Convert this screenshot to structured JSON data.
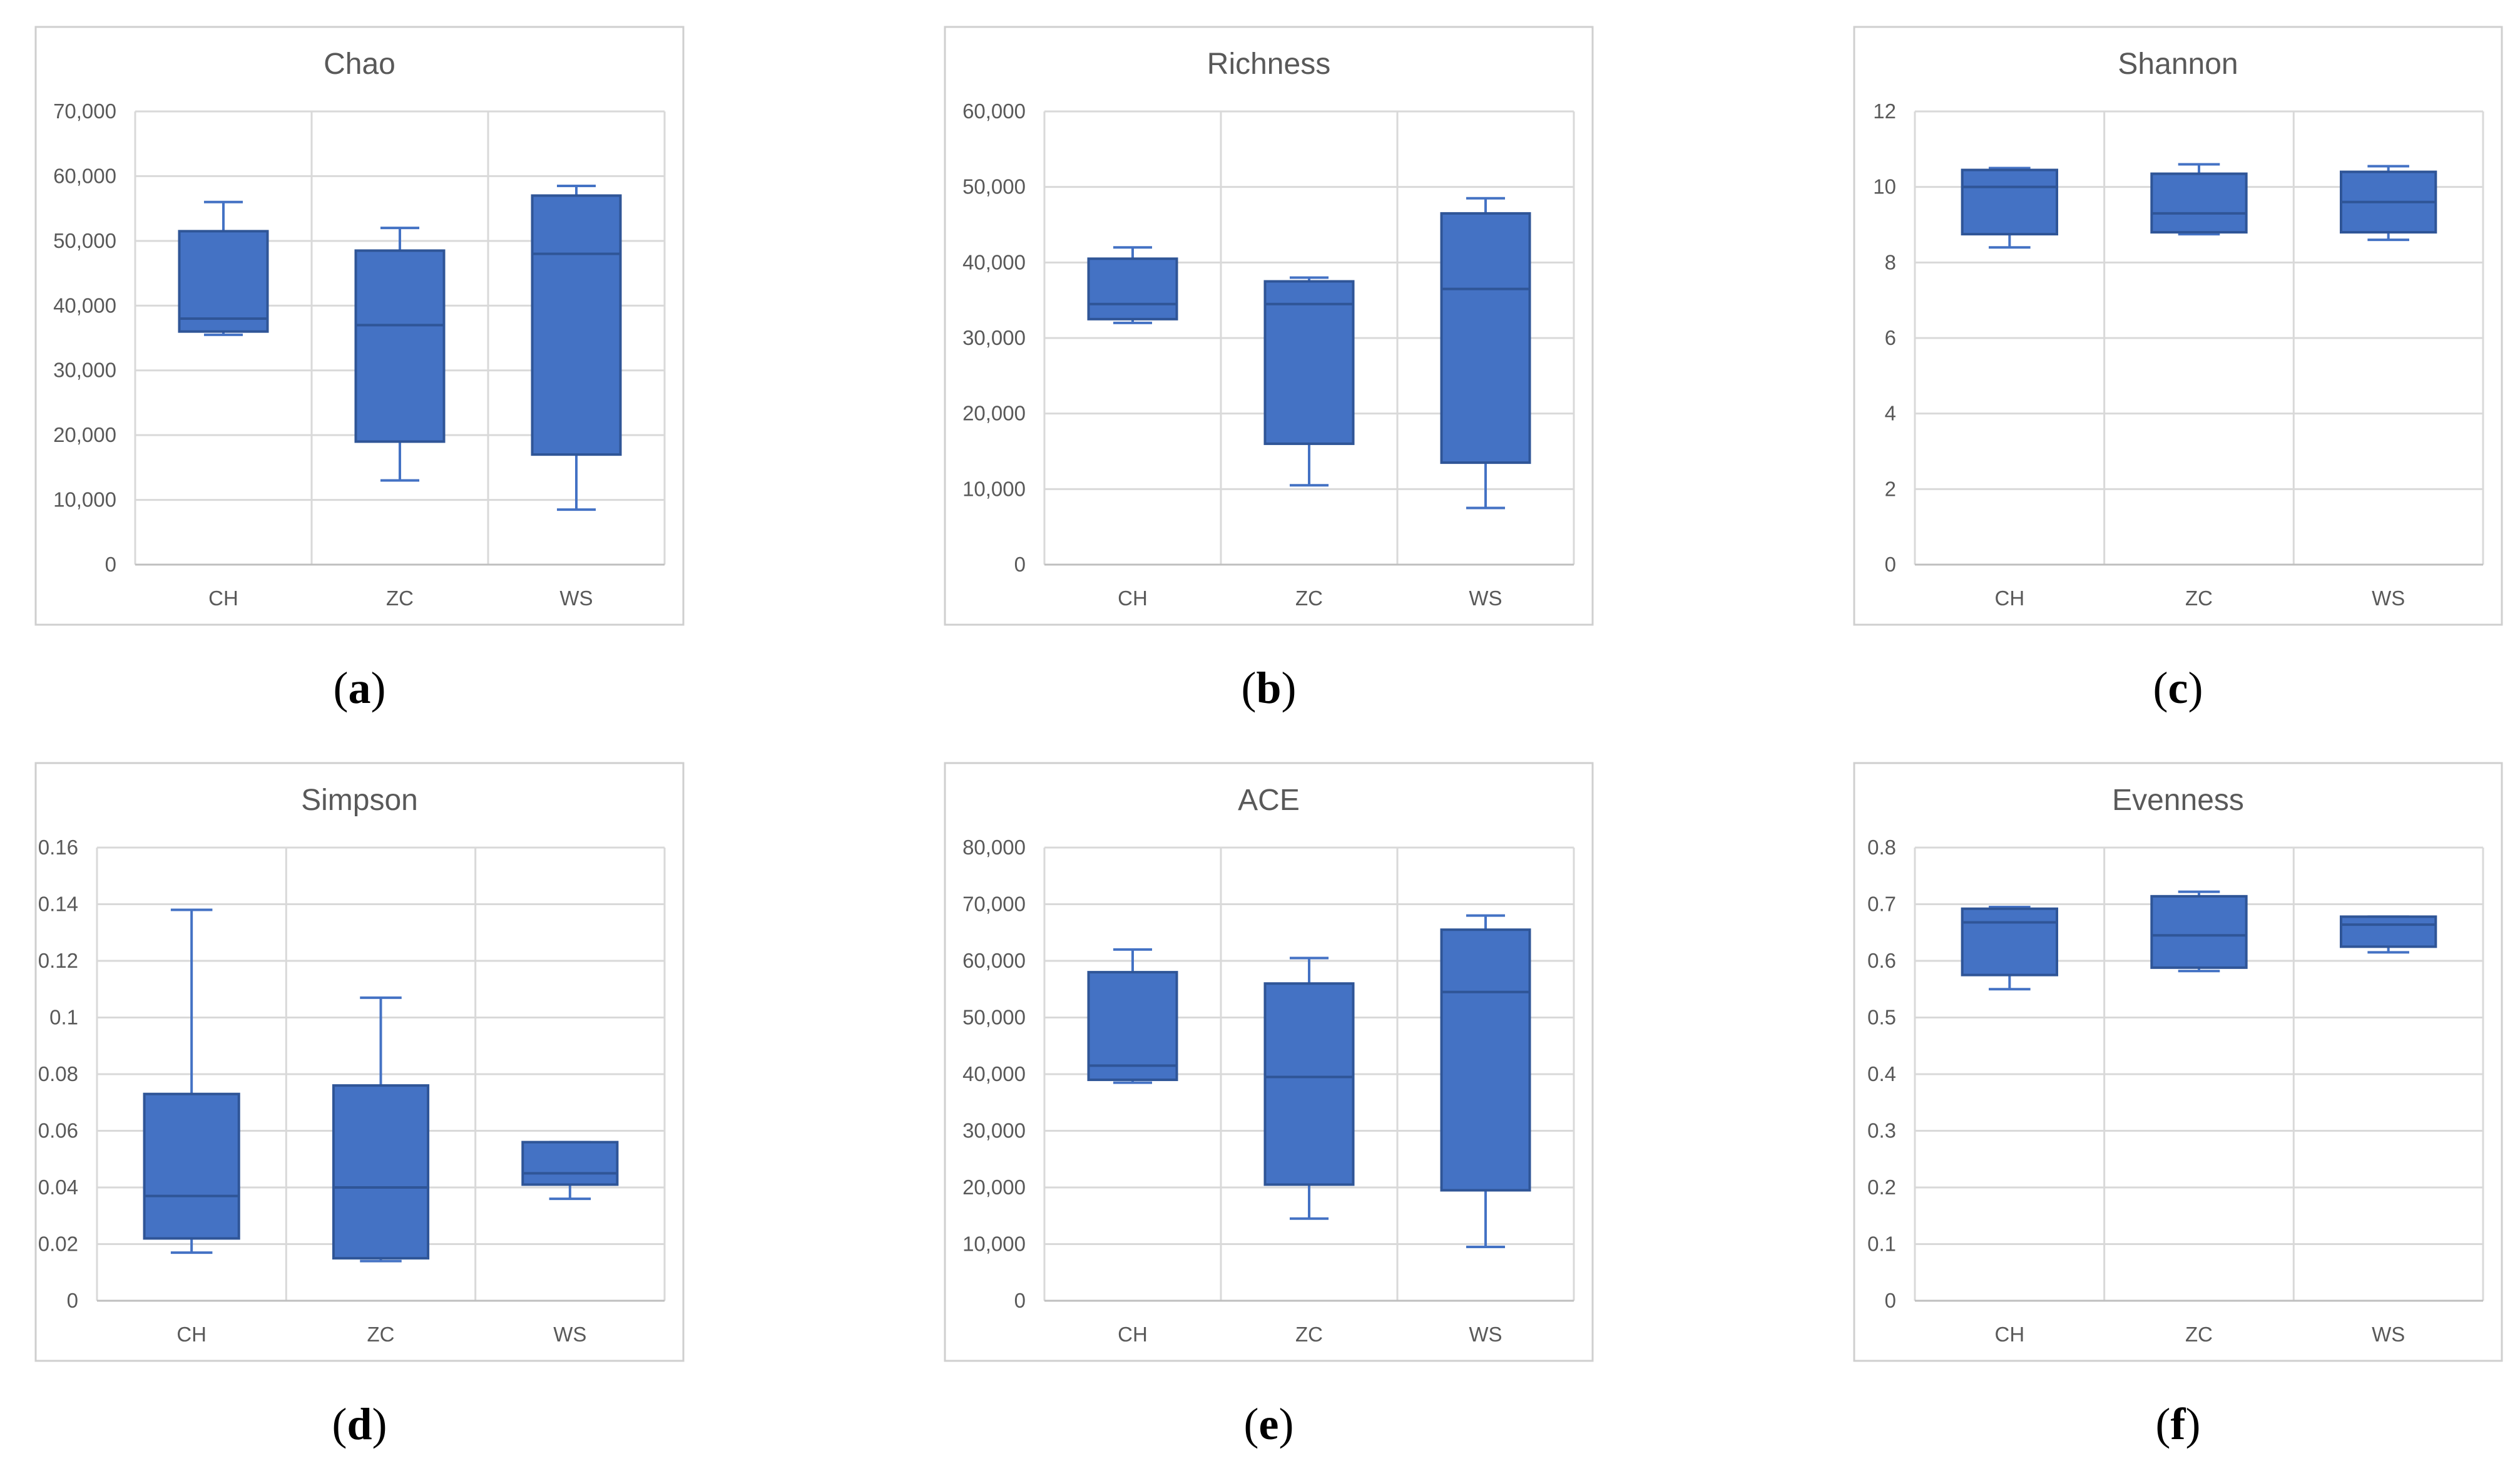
{
  "colors": {
    "box_fill": "#4472c4",
    "box_stroke": "#2f5597",
    "grid": "#d9d9d9",
    "text": "#595959"
  },
  "chart_data": [
    {
      "type": "boxplot",
      "panel": "a",
      "title": "Chao",
      "categories": [
        "CH",
        "ZC",
        "WS"
      ],
      "ylim": [
        0,
        70000
      ],
      "yticks": [
        0,
        10000,
        20000,
        30000,
        40000,
        50000,
        60000,
        70000
      ],
      "ytick_labels": [
        "0",
        "10,000",
        "20,000",
        "30,000",
        "40,000",
        "50,000",
        "60,000",
        "70,000"
      ],
      "boxes": [
        {
          "min": 35500,
          "q1": 36000,
          "median": 38000,
          "q3": 51500,
          "max": 56000
        },
        {
          "min": 13000,
          "q1": 19000,
          "median": 37000,
          "q3": 48500,
          "max": 52000
        },
        {
          "min": 8500,
          "q1": 17000,
          "median": 48000,
          "q3": 57000,
          "max": 58500
        }
      ]
    },
    {
      "type": "boxplot",
      "panel": "b",
      "title": "Richness",
      "categories": [
        "CH",
        "ZC",
        "WS"
      ],
      "ylim": [
        0,
        60000
      ],
      "yticks": [
        0,
        10000,
        20000,
        30000,
        40000,
        50000,
        60000
      ],
      "ytick_labels": [
        "0",
        "10,000",
        "20,000",
        "30,000",
        "40,000",
        "50,000",
        "60,000"
      ],
      "boxes": [
        {
          "min": 32000,
          "q1": 32500,
          "median": 34500,
          "q3": 40500,
          "max": 42000
        },
        {
          "min": 10500,
          "q1": 16000,
          "median": 34500,
          "q3": 37500,
          "max": 38000
        },
        {
          "min": 7500,
          "q1": 13500,
          "median": 36500,
          "q3": 46500,
          "max": 48500
        }
      ]
    },
    {
      "type": "boxplot",
      "panel": "c",
      "title": "Shannon",
      "categories": [
        "CH",
        "ZC",
        "WS"
      ],
      "ylim": [
        0,
        12
      ],
      "yticks": [
        0,
        2,
        4,
        6,
        8,
        10,
        12
      ],
      "ytick_labels": [
        "0",
        "2",
        "4",
        "6",
        "8",
        "10",
        "12"
      ],
      "boxes": [
        {
          "min": 8.4,
          "q1": 8.75,
          "median": 10.0,
          "q3": 10.45,
          "max": 10.5
        },
        {
          "min": 8.75,
          "q1": 8.8,
          "median": 9.3,
          "q3": 10.35,
          "max": 10.6
        },
        {
          "min": 8.6,
          "q1": 8.8,
          "median": 9.6,
          "q3": 10.4,
          "max": 10.55
        }
      ]
    },
    {
      "type": "boxplot",
      "panel": "d",
      "title": "Simpson",
      "categories": [
        "CH",
        "ZC",
        "WS"
      ],
      "ylim": [
        0,
        0.16
      ],
      "yticks": [
        0,
        0.02,
        0.04,
        0.06,
        0.08,
        0.1,
        0.12,
        0.14,
        0.16
      ],
      "ytick_labels": [
        "0",
        "0.02",
        "0.04",
        "0.06",
        "0.08",
        "0.1",
        "0.12",
        "0.14",
        "0.16"
      ],
      "boxes": [
        {
          "min": 0.017,
          "q1": 0.022,
          "median": 0.037,
          "q3": 0.073,
          "max": 0.138
        },
        {
          "min": 0.014,
          "q1": 0.015,
          "median": 0.04,
          "q3": 0.076,
          "max": 0.107
        },
        {
          "min": 0.036,
          "q1": 0.041,
          "median": 0.045,
          "q3": 0.056,
          "max": 0.056
        }
      ]
    },
    {
      "type": "boxplot",
      "panel": "e",
      "title": "ACE",
      "categories": [
        "CH",
        "ZC",
        "WS"
      ],
      "ylim": [
        0,
        80000
      ],
      "yticks": [
        0,
        10000,
        20000,
        30000,
        40000,
        50000,
        60000,
        70000,
        80000
      ],
      "ytick_labels": [
        "0",
        "10,000",
        "20,000",
        "30,000",
        "40,000",
        "50,000",
        "60,000",
        "70,000",
        "80,000"
      ],
      "boxes": [
        {
          "min": 38500,
          "q1": 39000,
          "median": 41500,
          "q3": 58000,
          "max": 62000
        },
        {
          "min": 14500,
          "q1": 20500,
          "median": 39500,
          "q3": 56000,
          "max": 60500
        },
        {
          "min": 9500,
          "q1": 19500,
          "median": 54500,
          "q3": 65500,
          "max": 68000
        }
      ]
    },
    {
      "type": "boxplot",
      "panel": "f",
      "title": "Evenness",
      "categories": [
        "CH",
        "ZC",
        "WS"
      ],
      "ylim": [
        0,
        0.8
      ],
      "yticks": [
        0,
        0.1,
        0.2,
        0.3,
        0.4,
        0.5,
        0.6,
        0.7,
        0.8
      ],
      "ytick_labels": [
        "0",
        "0.1",
        "0.2",
        "0.3",
        "0.4",
        "0.5",
        "0.6",
        "0.7",
        "0.8"
      ],
      "boxes": [
        {
          "min": 0.55,
          "q1": 0.575,
          "median": 0.668,
          "q3": 0.692,
          "max": 0.695
        },
        {
          "min": 0.582,
          "q1": 0.588,
          "median": 0.645,
          "q3": 0.714,
          "max": 0.722
        },
        {
          "min": 0.615,
          "q1": 0.625,
          "median": 0.664,
          "q3": 0.678,
          "max": 0.678
        }
      ]
    }
  ]
}
